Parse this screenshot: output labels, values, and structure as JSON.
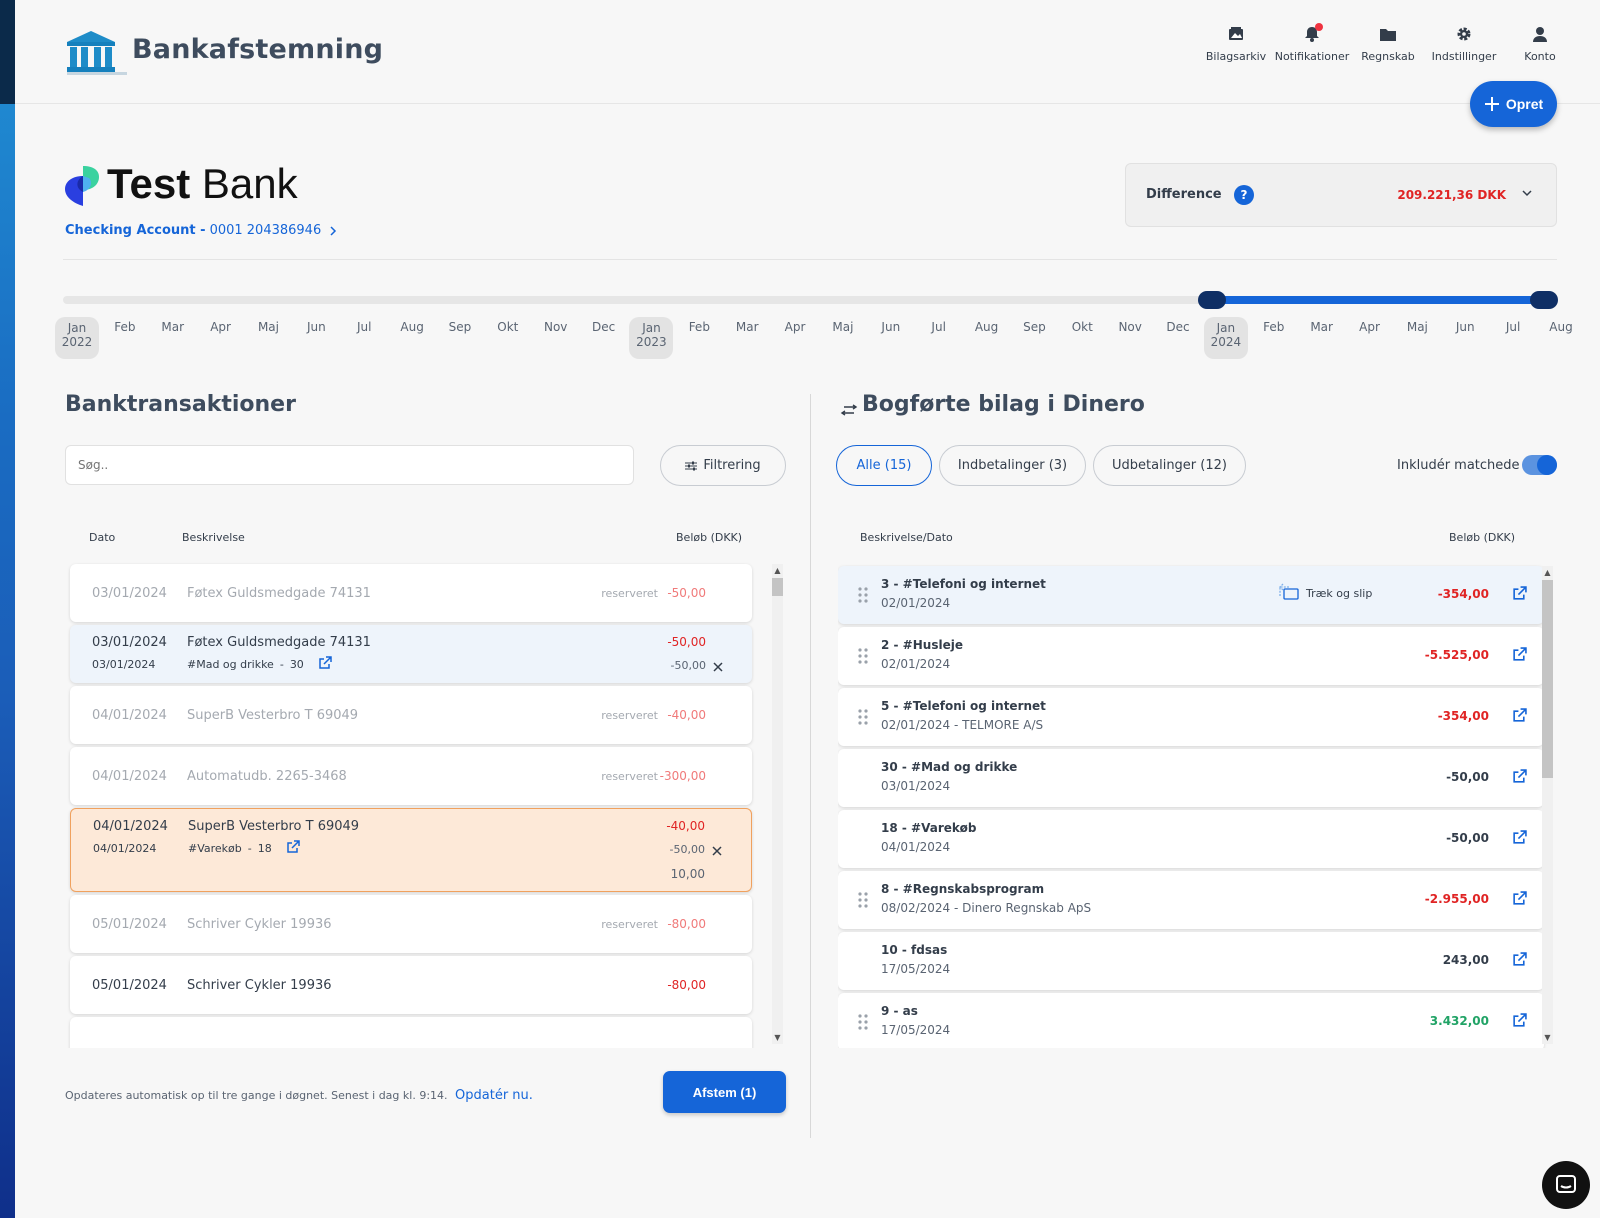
{
  "app": {
    "title": "Bankafstemning"
  },
  "topnav": [
    {
      "label": "Bilagsarkiv",
      "icon": "photo-archive-icon"
    },
    {
      "label": "Notifikationer",
      "icon": "bell-icon"
    },
    {
      "label": "Regnskab",
      "icon": "folder-icon"
    },
    {
      "label": "Indstillinger",
      "icon": "gear-icon"
    },
    {
      "label": "Konto",
      "icon": "user-icon"
    }
  ],
  "create_button": {
    "label": "Opret"
  },
  "bank": {
    "name_bold": "Test",
    "name_light": "Bank",
    "account_type": "Checking Account -",
    "account_number": "0001 204386946"
  },
  "difference": {
    "label": "Difference",
    "help": "?",
    "value": "209.221,36 DKK"
  },
  "timeline": {
    "months": [
      {
        "m": "Jan",
        "y": "2022"
      },
      {
        "m": "Feb"
      },
      {
        "m": "Mar"
      },
      {
        "m": "Apr"
      },
      {
        "m": "Maj"
      },
      {
        "m": "Jun"
      },
      {
        "m": "Jul"
      },
      {
        "m": "Aug"
      },
      {
        "m": "Sep"
      },
      {
        "m": "Okt"
      },
      {
        "m": "Nov"
      },
      {
        "m": "Dec"
      },
      {
        "m": "Jan",
        "y": "2023"
      },
      {
        "m": "Feb"
      },
      {
        "m": "Mar"
      },
      {
        "m": "Apr"
      },
      {
        "m": "Maj"
      },
      {
        "m": "Jun"
      },
      {
        "m": "Jul"
      },
      {
        "m": "Aug"
      },
      {
        "m": "Sep"
      },
      {
        "m": "Okt"
      },
      {
        "m": "Nov"
      },
      {
        "m": "Dec"
      },
      {
        "m": "Jan",
        "y": "2024"
      },
      {
        "m": "Feb"
      },
      {
        "m": "Mar"
      },
      {
        "m": "Apr"
      },
      {
        "m": "Maj"
      },
      {
        "m": "Jun"
      },
      {
        "m": "Jul"
      },
      {
        "m": "Aug"
      }
    ],
    "selected_start": "Jan 2024",
    "selected_end": "Aug 2024"
  },
  "bank_panel": {
    "title": "Banktransaktioner",
    "search_placeholder": "Søg..",
    "filter_label": "Filtrering",
    "columns": {
      "date": "Dato",
      "description": "Beskrivelse",
      "amount": "Beløb (DKK)"
    },
    "transactions": [
      {
        "date": "03/01/2024",
        "description": "Føtex Guldsmedgade 74131",
        "status": "reserveret",
        "amount": "-50,00",
        "state": "pending"
      },
      {
        "date": "03/01/2024",
        "description": "Føtex Guldsmedgade 74131",
        "amount": "-50,00",
        "state": "match",
        "sub_date": "03/01/2024",
        "sub_tag": "#Mad og drikke",
        "sub_number": "30",
        "sub_amount": "-50,00"
      },
      {
        "date": "04/01/2024",
        "description": "SuperB Vesterbro T 69049",
        "status": "reserveret",
        "amount": "-40,00",
        "state": "pending"
      },
      {
        "date": "04/01/2024",
        "description": "Automatudb. 2265-3468",
        "status": "reserveret",
        "amount": "-300,00",
        "state": "pending"
      },
      {
        "date": "04/01/2024",
        "description": "SuperB Vesterbro T 69049",
        "amount": "-40,00",
        "state": "selected",
        "sub_date": "04/01/2024",
        "sub_tag": "#Varekøb",
        "sub_number": "18",
        "sub_amount": "-50,00",
        "net": "10,00"
      },
      {
        "date": "05/01/2024",
        "description": "Schriver Cykler 19936",
        "status": "reserveret",
        "amount": "-80,00",
        "state": "pending"
      },
      {
        "date": "05/01/2024",
        "description": "Schriver Cykler 19936",
        "amount": "-80,00",
        "state": "normal"
      }
    ],
    "footer_note": "Opdateres automatisk op til tre gange i døgnet. Senest i dag kl. 9:14.",
    "update_link": "Opdatér nu.",
    "reconcile_button": "Afstem (1)"
  },
  "voucher_panel": {
    "title": "Bogførte bilag i Dinero",
    "filters": [
      {
        "label": "Alle (15)",
        "active": true
      },
      {
        "label": "Indbetalinger (3)",
        "active": false
      },
      {
        "label": "Udbetalinger (12)",
        "active": false
      }
    ],
    "toggle_label": "Inkludér matchede",
    "toggle_on": true,
    "columns": {
      "description": "Beskrivelse/Dato",
      "amount": "Beløb (DKK)"
    },
    "drag_hint": "Træk og slip",
    "vouchers": [
      {
        "title": "3  -  #Telefoni og internet",
        "sub": "02/01/2024",
        "amount": "-354,00",
        "tone": "neg",
        "draggable": true,
        "hint": true
      },
      {
        "title": "2  -  #Husleje",
        "sub": "02/01/2024",
        "amount": "-5.525,00",
        "tone": "neg",
        "draggable": true
      },
      {
        "title": "5  -  #Telefoni og internet",
        "sub": "02/01/2024  - TELMORE A/S",
        "amount": "-354,00",
        "tone": "neg",
        "draggable": true
      },
      {
        "title": "30  -  #Mad og drikke",
        "sub": "03/01/2024",
        "amount": "-50,00",
        "tone": "neutral",
        "draggable": false
      },
      {
        "title": "18  -  #Varekøb",
        "sub": "04/01/2024",
        "amount": "-50,00",
        "tone": "neutral",
        "draggable": false
      },
      {
        "title": "8  -  #Regnskabsprogram",
        "sub": "08/02/2024  - Dinero Regnskab ApS",
        "amount": "-2.955,00",
        "tone": "neg",
        "draggable": true
      },
      {
        "title": "10  -  fdsas",
        "sub": "17/05/2024",
        "amount": "243,00",
        "tone": "neutral",
        "draggable": false
      },
      {
        "title": "9  -  as",
        "sub": "17/05/2024",
        "amount": "3.432,00",
        "tone": "pos",
        "draggable": true
      }
    ]
  },
  "colors": {
    "primary": "#1565d8",
    "negative": "#e02424",
    "positive": "#21a366",
    "selected_bg": "#fde9d8"
  }
}
